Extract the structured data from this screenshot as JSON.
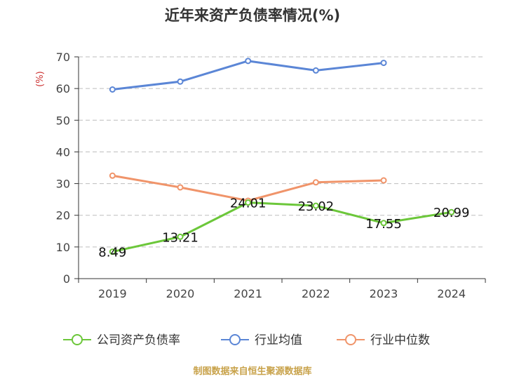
{
  "chart_data": {
    "type": "line",
    "title": "近年来资产负债率情况(%)",
    "ylabel": "(%)",
    "xlabel": "",
    "categories": [
      "2019",
      "2020",
      "2021",
      "2022",
      "2023",
      "2024"
    ],
    "ylim": [
      0,
      70
    ],
    "yticks": [
      0,
      10,
      20,
      30,
      40,
      50,
      60,
      70
    ],
    "grid": true,
    "legend_position": "bottom",
    "series": [
      {
        "name": "公司资产负债率",
        "color": "#6cc73a",
        "values": [
          8.49,
          13.21,
          24.01,
          23.02,
          17.55,
          20.99
        ],
        "labels": [
          "8.49",
          "13.21",
          "24.01",
          "23.02",
          "17.55",
          "20.99"
        ]
      },
      {
        "name": "行业均值",
        "color": "#5b86d6",
        "values": [
          59.7,
          62.2,
          68.7,
          65.7,
          68.1,
          null
        ]
      },
      {
        "name": "行业中位数",
        "color": "#f0946a",
        "values": [
          32.5,
          28.8,
          24.6,
          30.4,
          31.0,
          null
        ]
      }
    ]
  },
  "footer": {
    "source": "制图数据来自恒生聚源数据库"
  }
}
